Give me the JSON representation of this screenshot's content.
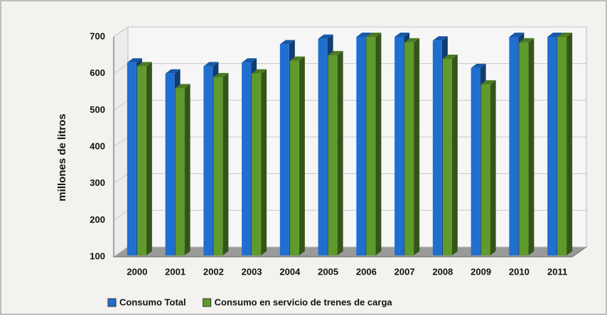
{
  "chart_data": {
    "type": "bar3d",
    "y_label": "millones de litros",
    "categories": [
      "2000",
      "2001",
      "2002",
      "2003",
      "2004",
      "2005",
      "2006",
      "2007",
      "2008",
      "2009",
      "2010",
      "2011"
    ],
    "series": [
      {
        "name": "Consumo Total",
        "color": "#1f6fd0",
        "values": [
          630,
          600,
          620,
          630,
          680,
          695,
          700,
          700,
          690,
          615,
          700,
          700
        ]
      },
      {
        "name": "Consumo en servicio de trenes de carga",
        "color": "#5f9a2c",
        "values": [
          620,
          560,
          590,
          600,
          635,
          650,
          700,
          685,
          640,
          570,
          685,
          700
        ]
      }
    ],
    "ylim": [
      100,
      700
    ],
    "yticks": [
      100,
      200,
      300,
      400,
      500,
      600,
      700
    ],
    "grid": true
  }
}
